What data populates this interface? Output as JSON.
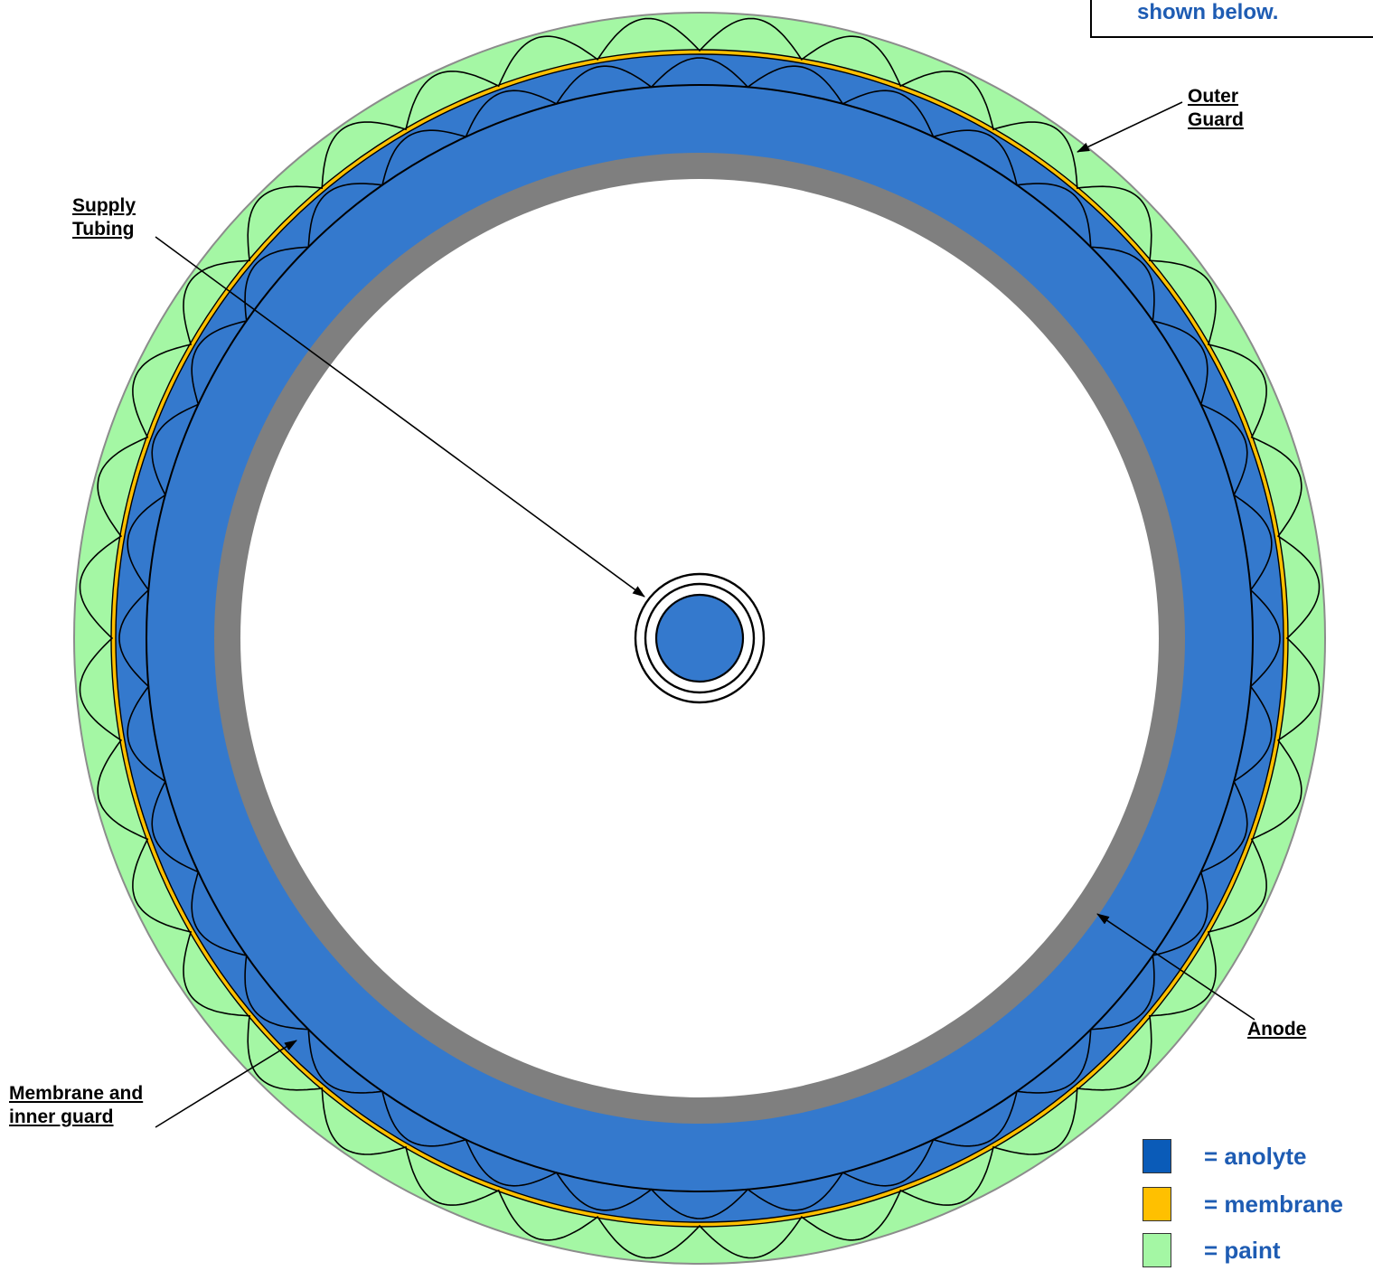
{
  "note": {
    "text": "shown below."
  },
  "labels": {
    "outer_guard": [
      "Outer",
      "Guard"
    ],
    "supply_tubing": [
      "Supply",
      "Tubing"
    ],
    "anode": [
      "Anode"
    ],
    "membrane_inner_guard": [
      "Membrane and",
      "inner guard"
    ]
  },
  "legend": [
    {
      "label": "= anolyte",
      "color": "#0a5bb8"
    },
    {
      "label": "= membrane",
      "color": "#ffc000"
    },
    {
      "label": "= paint",
      "color": "#a4f7a4"
    }
  ],
  "colors": {
    "anolyte": "#3479cd",
    "membrane": "#ffc000",
    "paint": "#a4f7a4",
    "anode": "#7f7f7f",
    "outline": "#000000"
  }
}
